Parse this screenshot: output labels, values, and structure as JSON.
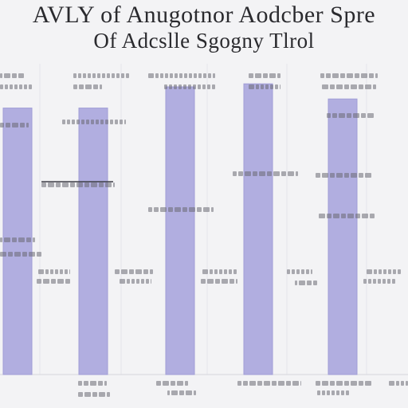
{
  "chart_data": {
    "type": "bar",
    "title": "AVLY of Anugotnor Adcslle Aodcber Sgogny Spre Tlrol",
    "title_lines": [
      "AVLY of Anugotnor Aodcber Spre",
      "Of Adcslle Sgogny Tlrol"
    ],
    "xlabel": "",
    "ylabel": "",
    "ylim": [
      0,
      100
    ],
    "grid": true,
    "legend": "none",
    "colors": {
      "bar": "#b1aee0",
      "bar_edge": "#a19ed6",
      "grid": "#e6e6ea",
      "text": "#4a4a52"
    },
    "categories": [
      "",
      "",
      "",
      "",
      ""
    ],
    "values": [
      88,
      88,
      95,
      96,
      91
    ]
  }
}
